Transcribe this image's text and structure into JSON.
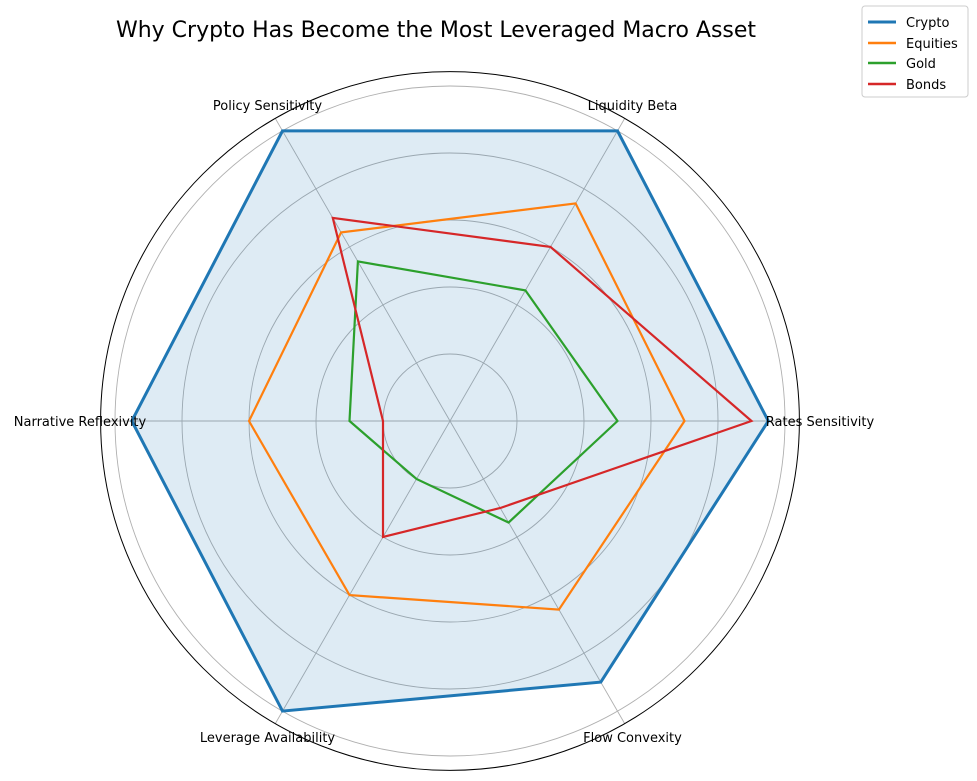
{
  "chart_data": {
    "type": "radar",
    "title": "Why Crypto Has Become the Most Leveraged Macro Asset",
    "categories": [
      "Rates Sensitivity",
      "Liquidity Beta",
      "Policy Sensitivity",
      "Narrative Reflexivity",
      "Leverage Availability",
      "Flow Convexity"
    ],
    "series": [
      {
        "name": "Crypto",
        "color": "#1f77b4",
        "values": [
          0.95,
          1.0,
          1.0,
          0.95,
          1.0,
          0.9
        ],
        "fill": true,
        "line_width": 3
      },
      {
        "name": "Equities",
        "color": "#ff7f0e",
        "values": [
          0.7,
          0.75,
          0.65,
          0.6,
          0.6,
          0.65
        ],
        "fill": false,
        "line_width": 2.2
      },
      {
        "name": "Gold",
        "color": "#2ca02c",
        "values": [
          0.5,
          0.45,
          0.55,
          0.3,
          0.2,
          0.35
        ],
        "fill": false,
        "line_width": 2.2
      },
      {
        "name": "Bonds",
        "color": "#d62728",
        "values": [
          0.9,
          0.6,
          0.7,
          0.2,
          0.4,
          0.3
        ],
        "fill": false,
        "line_width": 2.2
      }
    ],
    "rlim": [
      0,
      1.04
    ],
    "rgrid": [
      0.2,
      0.4,
      0.6,
      0.8,
      1.0
    ],
    "grid": true,
    "tick_labels_radial": false,
    "legend_position": "upper right",
    "fill_color": "#1f77b4",
    "fill_opacity": 0.15
  },
  "legend": {
    "items": [
      {
        "label": "Crypto",
        "color": "#1f77b4"
      },
      {
        "label": "Equities",
        "color": "#ff7f0e"
      },
      {
        "label": "Gold",
        "color": "#2ca02c"
      },
      {
        "label": "Bonds",
        "color": "#d62728"
      }
    ]
  }
}
